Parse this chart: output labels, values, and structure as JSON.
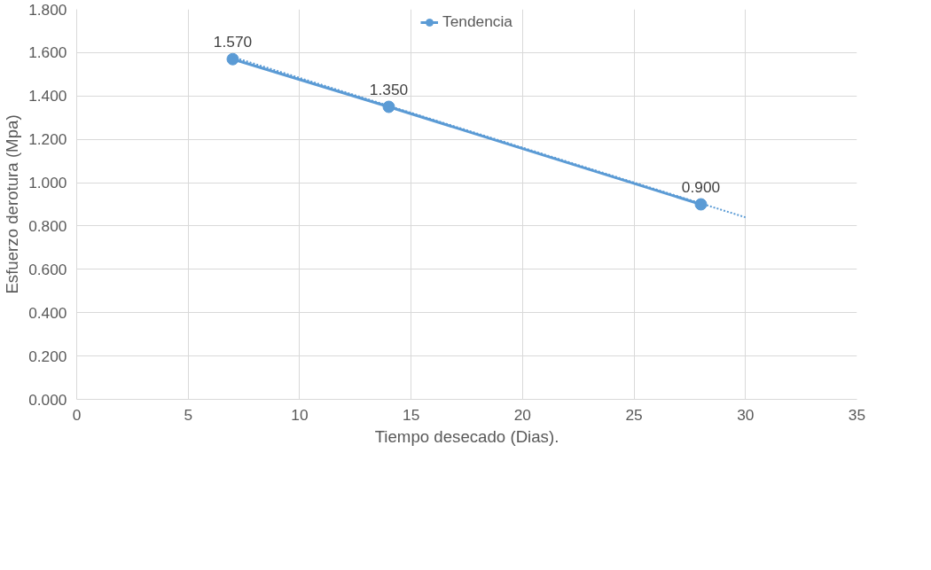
{
  "chart_data": {
    "type": "line",
    "xlabel": "Tiempo desecado (Dias).",
    "ylabel": "Esfuerzo derotura (Mpa)",
    "xlim": [
      0,
      35
    ],
    "xticks": [
      0,
      5,
      10,
      15,
      20,
      25,
      30,
      35
    ],
    "ylim": [
      0,
      1.8
    ],
    "yticks": [
      {
        "value": 0,
        "label": "0.000"
      },
      {
        "value": 0.2,
        "label": "0.200"
      },
      {
        "value": 0.4,
        "label": "0.400"
      },
      {
        "value": 0.6,
        "label": "0.600"
      },
      {
        "value": 0.8,
        "label": "0.800"
      },
      {
        "value": 1.0,
        "label": "1.000"
      },
      {
        "value": 1.2,
        "label": "1.200"
      },
      {
        "value": 1.4,
        "label": "1.400"
      },
      {
        "value": 1.6,
        "label": "1.600"
      },
      {
        "value": 1.8,
        "label": "1.800"
      }
    ],
    "grid": true,
    "legend": "top",
    "series": [
      {
        "name": "Tendencia",
        "color": "#5b9bd5",
        "x": [
          7,
          14,
          28
        ],
        "values": [
          1.57,
          1.35,
          0.9
        ],
        "marker": "circle",
        "line_style": "solid",
        "value_labels": [
          "1.570",
          "1.350",
          "0.900"
        ]
      },
      {
        "color": "#5b9bd5",
        "type": "line",
        "x": [
          7,
          30
        ],
        "values": [
          1.58,
          0.84
        ],
        "marker": "none",
        "line_style": "dotted"
      }
    ]
  }
}
